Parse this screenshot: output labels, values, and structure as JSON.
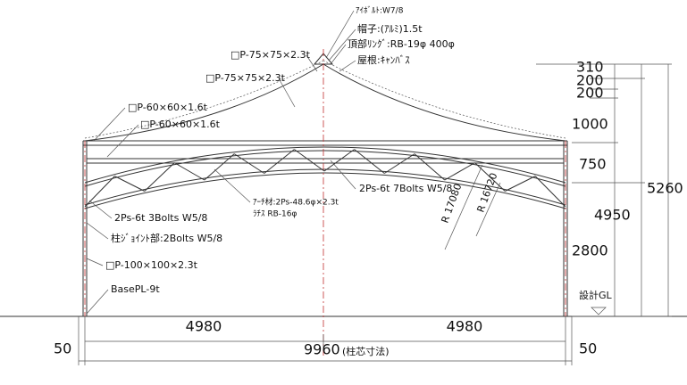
{
  "callouts": [
    "ｱｲﾎﾞﾙﾄ:W7/8",
    "帽子:(ｱﾙﾐ)1.5t",
    "頂部ﾘﾝｸﾞ:RB-19φ 400φ",
    "屋根:ｷｬﾝﾊﾞｽ",
    "□P-75×75×2.3t",
    "□P-75×75×2.3t",
    "□P-60×60×1.6t",
    "□P-60×60×1.6t",
    "2Ps-6t 7Bolts W5/8",
    "ｱｰﾁ材:2Ps-48.6φ×2.3t",
    "ﾗﾁｽ RB-16φ",
    "2Ps-6t 3Bolts W5/8",
    "柱ｼﾞｮｲﾝﾄ部:2Bolts W5/8",
    "□P-100×100×2.3t",
    "BasePL-9t"
  ],
  "radii": [
    "R 17080",
    "R 16720"
  ],
  "vertical_dimensions": [
    "310",
    "200",
    "200",
    "1000",
    "750",
    "5260",
    "4950",
    "2800"
  ],
  "design_gl": "設計GL",
  "horizontal_dimensions": {
    "left_span": "4980",
    "right_span": "4980",
    "left_offset": "50",
    "right_offset": "50",
    "total": "9960",
    "total_note": "(柱芯寸法)"
  }
}
